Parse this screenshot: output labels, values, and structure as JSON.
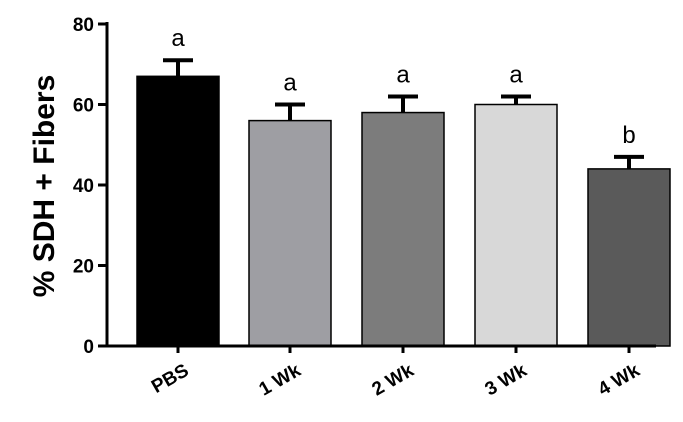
{
  "chart_data": {
    "type": "bar",
    "title": "",
    "xlabel": "",
    "ylabel": "% SDH + Fibers",
    "ylim": [
      0,
      80
    ],
    "yticks": [
      0,
      20,
      40,
      60,
      80
    ],
    "grid": false,
    "categories": [
      "PBS",
      "1 Wk",
      "2 Wk",
      "3 Wk",
      "4 Wk"
    ],
    "values": [
      67,
      56,
      58,
      60,
      44
    ],
    "errors": [
      4,
      4,
      4,
      2,
      3
    ],
    "significance_labels": [
      "a",
      "a",
      "a",
      "a",
      "b"
    ],
    "bar_colors": [
      "#000000",
      "#9e9ea3",
      "#7c7c7c",
      "#d8d8d8",
      "#5a5a5a"
    ]
  }
}
